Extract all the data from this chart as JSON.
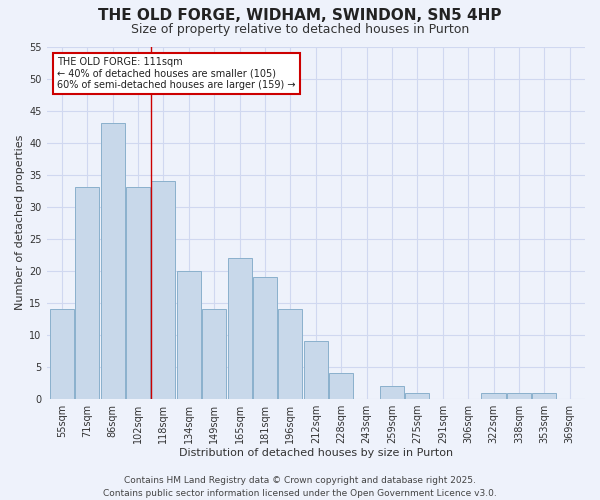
{
  "title": "THE OLD FORGE, WIDHAM, SWINDON, SN5 4HP",
  "subtitle": "Size of property relative to detached houses in Purton",
  "xlabel": "Distribution of detached houses by size in Purton",
  "ylabel": "Number of detached properties",
  "categories": [
    "55sqm",
    "71sqm",
    "86sqm",
    "102sqm",
    "118sqm",
    "134sqm",
    "149sqm",
    "165sqm",
    "181sqm",
    "196sqm",
    "212sqm",
    "228sqm",
    "243sqm",
    "259sqm",
    "275sqm",
    "291sqm",
    "306sqm",
    "322sqm",
    "338sqm",
    "353sqm",
    "369sqm"
  ],
  "values": [
    14,
    33,
    43,
    33,
    34,
    20,
    14,
    22,
    19,
    14,
    9,
    4,
    0,
    2,
    1,
    0,
    0,
    1,
    1,
    1,
    0
  ],
  "bar_color": "#c8d8ea",
  "bar_edge_color": "#8ab0cc",
  "background_color": "#eef2fb",
  "grid_color": "#d0d8f0",
  "vline_color": "#cc0000",
  "annotation_box_text": "THE OLD FORGE: 111sqm\n← 40% of detached houses are smaller (105)\n60% of semi-detached houses are larger (159) →",
  "annotation_box_edge_color": "#cc0000",
  "annotation_box_face_color": "#ffffff",
  "footnote": "Contains HM Land Registry data © Crown copyright and database right 2025.\nContains public sector information licensed under the Open Government Licence v3.0.",
  "ylim": [
    0,
    55
  ],
  "yticks": [
    0,
    5,
    10,
    15,
    20,
    25,
    30,
    35,
    40,
    45,
    50,
    55
  ],
  "title_fontsize": 11,
  "subtitle_fontsize": 9,
  "label_fontsize": 8,
  "tick_fontsize": 7,
  "footnote_fontsize": 6.5,
  "vline_x": 3.5
}
